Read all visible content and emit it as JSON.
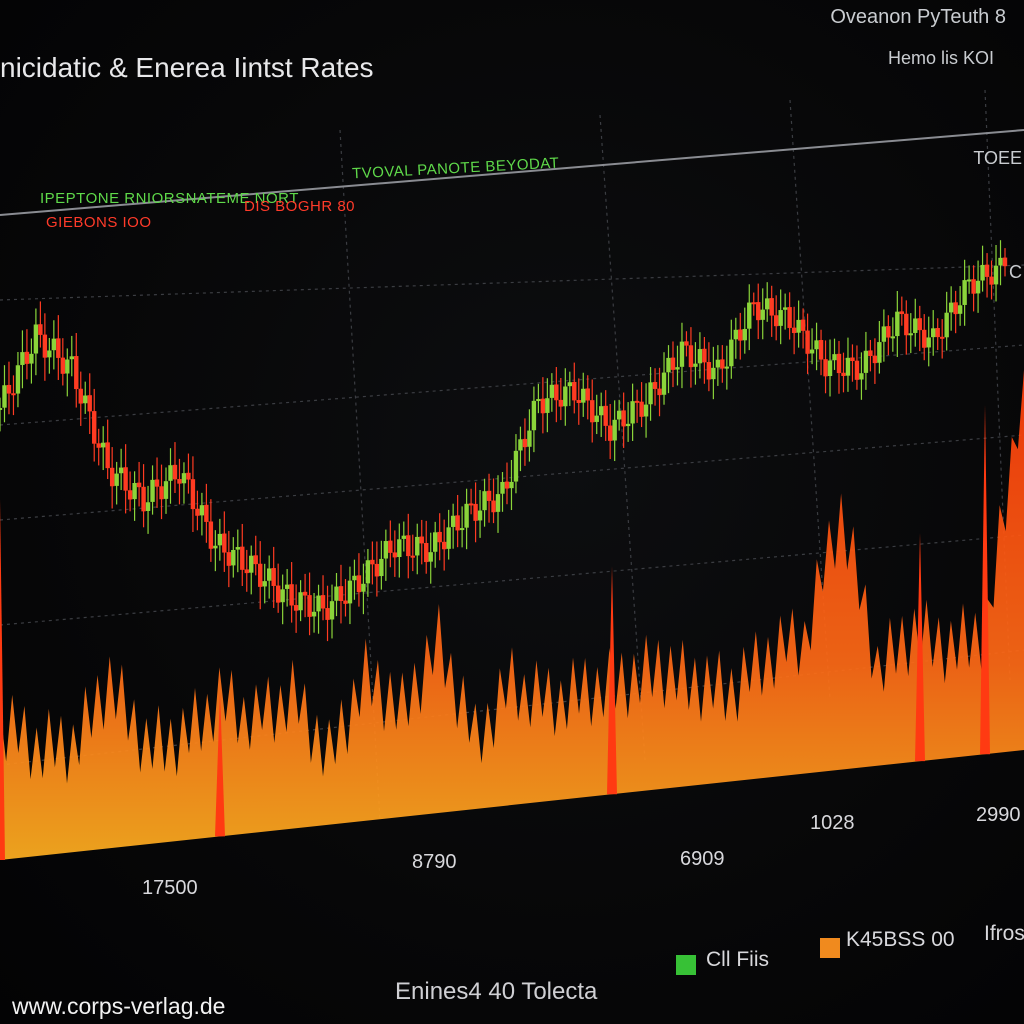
{
  "header": {
    "title": "nicidatic & Enerea Iintst Rates",
    "top_right_1": "Oveanon PyTeuth 8",
    "top_right_2": "Hemo lis KOI"
  },
  "info": {
    "green_1": "IPEPTONE RNIORSNATEME NORT",
    "green_2": "TVOVAL PANOTE BEYODAT",
    "red_1": "GIEBONS IOO",
    "red_2": "DIS BOGHR 80"
  },
  "right_labels": [
    "TOEE",
    "C"
  ],
  "x_ticks": [
    "17500",
    "8790",
    "6909",
    "1028",
    "2990"
  ],
  "legend": [
    {
      "label": "Cll Fiis",
      "color": "#37c136"
    },
    {
      "label": "K45BSS 00",
      "color": "#f08a1e"
    },
    {
      "label": "Ifros",
      "color": ""
    }
  ],
  "footer": "Enines4 40 Tolecta",
  "watermark": "www.corps-verlag.de",
  "colors": {
    "up": "#8bd43a",
    "down": "#ff3b22",
    "volume": "#ff5a14",
    "volume_hi": "#ffb020",
    "grid": "#3b3d42"
  },
  "chart_data": {
    "type": "line",
    "series": [
      {
        "values": [
          36,
          44,
          40,
          28,
          24,
          27,
          18,
          15,
          11,
          9,
          12,
          16,
          15,
          19,
          21,
          32,
          33,
          28,
          31,
          37,
          34,
          42,
          40,
          34,
          33,
          39,
          36,
          43,
          45
        ]
      },
      {
        "values": [
          36,
          29,
          28,
          44,
          26,
          27,
          36,
          30,
          35,
          18,
          38,
          28,
          45,
          18,
          32,
          26,
          28,
          29,
          32,
          27,
          24,
          32,
          36,
          68,
          26,
          34,
          29,
          33,
          100
        ]
      }
    ]
  }
}
